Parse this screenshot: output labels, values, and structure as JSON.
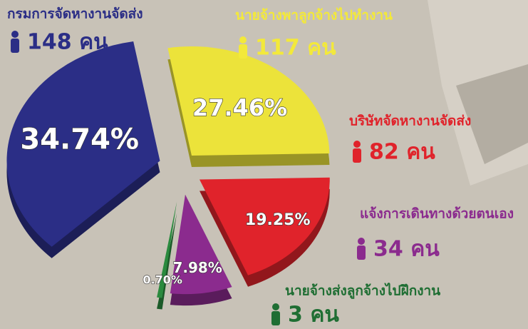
{
  "chart_data": {
    "type": "pie",
    "categories": [
      "กรมการจัดหางานจัดส่ง",
      "นายจ้างพาลูกจ้างไปทำงาน",
      "บริษัทจัดหางานจัดส่ง",
      "แจ้งการเดินทางด้วยตนเอง",
      "นายจ้างส่งลูกจ้างไปฝึกงาน"
    ],
    "count_labels": [
      "148 คน",
      "117 คน",
      "82 คน",
      "34 คน",
      "3 คน"
    ],
    "values": [
      34.74,
      27.46,
      19.25,
      7.98,
      0.7
    ],
    "value_labels": [
      "34.74%",
      "27.46%",
      "19.25%",
      "7.98%",
      "0.70%"
    ],
    "colors": [
      "#2b2e86",
      "#ece33a",
      "#e0232b",
      "#8b2b8e",
      "#2a8a3e"
    ]
  }
}
